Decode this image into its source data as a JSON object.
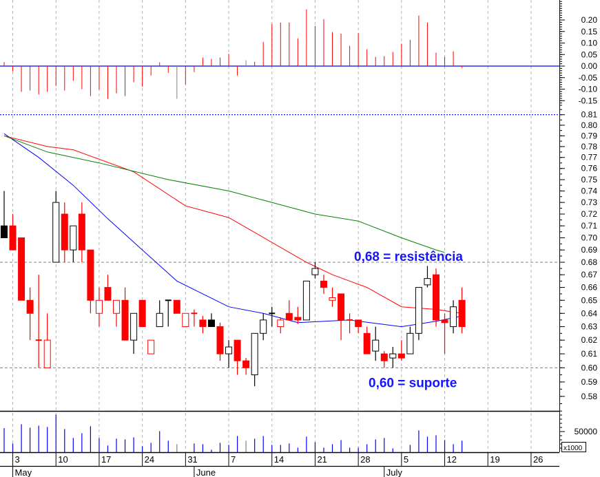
{
  "chart_data": {
    "type": "candlestick",
    "colors": {
      "down": "#ff0000",
      "up": "#000000",
      "volume": "#0000ff",
      "neutral": "#808080",
      "zero_line": "#0000ff",
      "ma_short": "#0000ff",
      "ma_mid": "#ff0000",
      "ma_long": "#008000",
      "annotation": "#1414ff",
      "grid": "#b4b4b4",
      "level": "#808080"
    },
    "price_axis": {
      "scale": "log",
      "range": [
        0.57,
        0.815
      ],
      "ticks": [
        "0.81",
        "0.80",
        "0.79",
        "0.78",
        "0.77",
        "0.76",
        "0.75",
        "0.74",
        "0.73",
        "0.72",
        "0.71",
        "0.70",
        "0.69",
        "0.68",
        "0.67",
        "0.66",
        "0.65",
        "0.64",
        "0.63",
        "0.62",
        "0.61",
        "0.60",
        "0.59",
        "0.58"
      ]
    },
    "candle_fields": [
      "open",
      "high",
      "low",
      "close",
      "style"
    ],
    "candles": [
      [
        0.71,
        0.74,
        0.7,
        0.7,
        "black"
      ],
      [
        0.71,
        0.72,
        0.69,
        0.69,
        "red"
      ],
      [
        0.7,
        0.7,
        0.65,
        0.65,
        "red"
      ],
      [
        0.65,
        0.66,
        0.62,
        0.64,
        "red"
      ],
      [
        0.62,
        0.67,
        0.6,
        0.62,
        "red"
      ],
      [
        0.6,
        0.64,
        0.6,
        0.62,
        "redHollow"
      ],
      [
        0.68,
        0.74,
        0.68,
        0.73,
        "blackHollow"
      ],
      [
        0.72,
        0.73,
        0.68,
        0.69,
        "red"
      ],
      [
        0.69,
        0.71,
        0.68,
        0.71,
        "blackHollow"
      ],
      [
        0.72,
        0.73,
        0.68,
        0.69,
        "red"
      ],
      [
        0.69,
        0.69,
        0.64,
        0.65,
        "red"
      ],
      [
        0.64,
        0.66,
        0.63,
        0.65,
        "redHollow"
      ],
      [
        0.66,
        0.67,
        0.65,
        0.65,
        "red"
      ],
      [
        0.64,
        0.65,
        0.63,
        0.65,
        "redHollow"
      ],
      [
        0.65,
        0.66,
        0.62,
        0.62,
        "red"
      ],
      [
        0.62,
        0.64,
        0.61,
        0.64,
        "blackHollow"
      ],
      [
        0.65,
        0.65,
        0.63,
        0.63,
        "red"
      ],
      [
        0.61,
        0.62,
        0.61,
        0.62,
        "redHollow"
      ],
      [
        0.63,
        0.65,
        0.63,
        0.64,
        "blackHollow"
      ],
      [
        0.65,
        0.65,
        0.63,
        0.65,
        "black"
      ],
      [
        0.65,
        0.65,
        0.64,
        0.64,
        "red"
      ],
      [
        0.63,
        0.64,
        0.63,
        0.64,
        "redHollow"
      ],
      [
        0.64,
        0.643,
        0.63,
        0.639,
        "red"
      ],
      [
        0.635,
        0.638,
        0.625,
        0.63,
        "red"
      ],
      [
        0.635,
        0.64,
        0.63,
        0.63,
        "black"
      ],
      [
        0.63,
        0.633,
        0.605,
        0.61,
        "red"
      ],
      [
        0.61,
        0.62,
        0.6,
        0.615,
        "blackHollow"
      ],
      [
        0.62,
        0.62,
        0.595,
        0.605,
        "red"
      ],
      [
        0.605,
        0.607,
        0.595,
        0.6,
        "red"
      ],
      [
        0.595,
        0.625,
        0.587,
        0.625,
        "blackHollow"
      ],
      [
        0.625,
        0.64,
        0.62,
        0.635,
        "blackHollow"
      ],
      [
        0.64,
        0.645,
        0.63,
        0.639,
        "black"
      ],
      [
        0.63,
        0.637,
        0.625,
        0.635,
        "redHollow"
      ],
      [
        0.64,
        0.65,
        0.635,
        0.635,
        "red"
      ],
      [
        0.637,
        0.645,
        0.632,
        0.635,
        "red"
      ],
      [
        0.635,
        0.665,
        0.635,
        0.665,
        "blackHollow"
      ],
      [
        0.67,
        0.68,
        0.667,
        0.675,
        "blackHollow"
      ],
      [
        0.665,
        0.67,
        0.655,
        0.66,
        "red"
      ],
      [
        0.65,
        0.66,
        0.645,
        0.652,
        "redHollow"
      ],
      [
        0.655,
        0.655,
        0.62,
        0.635,
        "red"
      ],
      [
        0.635,
        0.64,
        0.625,
        0.634,
        "red"
      ],
      [
        0.635,
        0.635,
        0.625,
        0.63,
        "red"
      ],
      [
        0.625,
        0.63,
        0.61,
        0.61,
        "red"
      ],
      [
        0.612,
        0.63,
        0.605,
        0.62,
        "blackHollow"
      ],
      [
        0.61,
        0.612,
        0.6,
        0.605,
        "red"
      ],
      [
        0.607,
        0.615,
        0.6,
        0.61,
        "blackHollow"
      ],
      [
        0.61,
        0.62,
        0.605,
        0.607,
        "red"
      ],
      [
        0.61,
        0.63,
        0.61,
        0.625,
        "blackHollow"
      ],
      [
        0.625,
        0.66,
        0.62,
        0.66,
        "blackHollow"
      ],
      [
        0.662,
        0.677,
        0.66,
        0.667,
        "blackHollow"
      ],
      [
        0.67,
        0.675,
        0.63,
        0.635,
        "red"
      ],
      [
        0.635,
        0.64,
        0.61,
        0.633,
        "red"
      ],
      [
        0.63,
        0.65,
        0.625,
        0.645,
        "blackHollow"
      ],
      [
        0.65,
        0.66,
        0.625,
        0.63,
        "red"
      ]
    ],
    "moving_averages": [
      {
        "name": "ma_short",
        "points": [
          [
            0,
            0.792
          ],
          [
            4,
            0.77
          ],
          [
            8,
            0.745
          ],
          [
            12,
            0.716
          ],
          [
            16,
            0.69
          ],
          [
            20,
            0.665
          ],
          [
            26,
            0.645
          ],
          [
            30,
            0.64
          ],
          [
            34,
            0.633
          ],
          [
            40,
            0.635
          ],
          [
            46,
            0.63
          ],
          [
            50,
            0.634
          ],
          [
            53,
            0.638
          ]
        ]
      },
      {
        "name": "ma_mid",
        "points": [
          [
            0,
            0.79
          ],
          [
            5,
            0.78
          ],
          [
            8,
            0.777
          ],
          [
            15,
            0.757
          ],
          [
            21,
            0.727
          ],
          [
            26,
            0.717
          ],
          [
            35,
            0.68
          ],
          [
            38,
            0.67
          ],
          [
            42,
            0.66
          ],
          [
            46,
            0.645
          ],
          [
            50,
            0.643
          ],
          [
            53,
            0.64
          ]
        ]
      },
      {
        "name": "ma_long",
        "points": [
          [
            0,
            0.79
          ],
          [
            5,
            0.775
          ],
          [
            11,
            0.765
          ],
          [
            19,
            0.75
          ],
          [
            26,
            0.74
          ],
          [
            31,
            0.73
          ],
          [
            36,
            0.72
          ],
          [
            41,
            0.714
          ],
          [
            46,
            0.7
          ],
          [
            50,
            0.69
          ],
          [
            51,
            0.688
          ]
        ]
      }
    ],
    "levels": [
      {
        "value": 0.68,
        "label": "0,68 = resistência"
      },
      {
        "value": 0.6,
        "label": "0,60 = suporte"
      }
    ],
    "top_level_line": 0.81,
    "indicator": {
      "range": [
        -0.18,
        0.29
      ],
      "ticks": [
        "0.20",
        "0.15",
        "0.10",
        "0.05",
        "0.00",
        "-0.05",
        "-0.10",
        "-0.15"
      ],
      "tick_values": [
        0.2,
        0.15,
        0.1,
        0.05,
        0.0,
        -0.05,
        -0.1,
        -0.15
      ],
      "values": [
        0.017,
        -0.023,
        -0.112,
        -0.106,
        -0.123,
        -0.112,
        -0.086,
        -0.106,
        -0.064,
        -0.1,
        -0.13,
        -0.103,
        -0.142,
        -0.118,
        -0.13,
        -0.07,
        -0.089,
        -0.041,
        0.016,
        -0.029,
        -0.142,
        -0.08,
        -0.026,
        0.037,
        0.031,
        0.037,
        0.053,
        -0.041,
        0.025,
        0.019,
        0.105,
        0.183,
        0.189,
        0.189,
        0.12,
        0.246,
        0.174,
        0.204,
        0.147,
        0.141,
        0.088,
        0.144,
        0.073,
        0.04,
        0.043,
        0.061,
        0.097,
        0.114,
        0.219,
        0.189,
        0.058,
        0.04,
        0.064,
        -0.008
      ],
      "gray_indices": [
        20,
        28
      ]
    },
    "volume": {
      "tick_label": "50000",
      "tick_value": 50000,
      "unit_label": "x1000",
      "values": [
        58300,
        21100,
        67800,
        59400,
        64400,
        61100,
        91100,
        56100,
        34400,
        46100,
        62800,
        34400,
        16100,
        32800,
        31100,
        36100,
        14400,
        22800,
        51100,
        27800,
        19400,
        null,
        21100,
        19400,
        6100,
        22800,
        17800,
        39400,
        27800,
        32800,
        39400,
        17800,
        17800,
        21100,
        11100,
        37800,
        24400,
        11100,
        19400,
        29400,
        11100,
        11100,
        19400,
        31100,
        34400,
        9400,
        null,
        17800,
        52800,
        37800,
        41100,
        29400,
        19400,
        27800
      ],
      "gray_indices": [
        20,
        28
      ]
    },
    "x_axis": {
      "day_labels": [
        {
          "label": "3",
          "index": 1
        },
        {
          "label": "10",
          "index": 6
        },
        {
          "label": "17",
          "index": 11
        },
        {
          "label": "24",
          "index": 16
        },
        {
          "label": "31",
          "index": 21
        },
        {
          "label": "7",
          "index": 26
        },
        {
          "label": "14",
          "index": 31
        },
        {
          "label": "21",
          "index": 36
        },
        {
          "label": "28",
          "index": 41
        },
        {
          "label": "5",
          "index": 46
        },
        {
          "label": "12",
          "index": 51
        },
        {
          "label": "19",
          "index": 56
        },
        {
          "label": "26",
          "index": 61
        }
      ],
      "months": [
        {
          "label": "May",
          "index": 1
        },
        {
          "label": "June",
          "index": 22
        },
        {
          "label": "July",
          "index": 44
        }
      ]
    }
  }
}
